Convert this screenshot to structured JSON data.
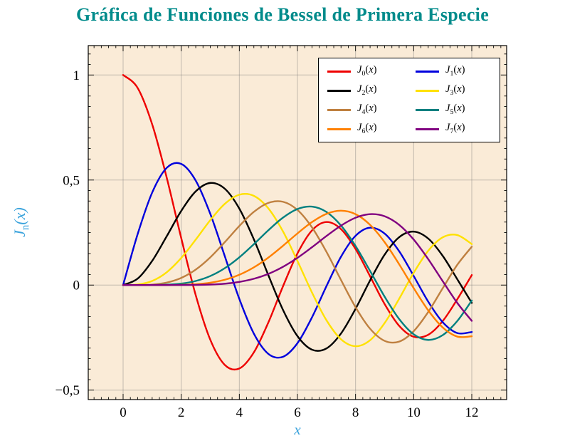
{
  "title": {
    "text": "Gráfica de Funciones de Bessel de Primera Especie",
    "color": "#008b8b"
  },
  "axes": {
    "x_label": "x",
    "y_label": {
      "base": "J",
      "sub": "n",
      "open": "(",
      "var": "x",
      "close": ")"
    },
    "label_color": "#3ba3dc",
    "tick_color": "#000000"
  },
  "chart_data": {
    "type": "line",
    "title": "Gráfica de Funciones de Bessel de Primera Especie",
    "xlabel": "x",
    "ylabel": "J_n(x)",
    "xlim": [
      -1.2,
      13.2
    ],
    "ylim": [
      -0.545,
      1.14
    ],
    "grid": true,
    "legend_position": "top-right",
    "plot_bg": "#faebd7",
    "grid_color": "rgba(110,110,110,0.4)",
    "axis_color": "#000000",
    "func_symbol": "J",
    "arg_open": "(",
    "arg_var": "x",
    "arg_close": ")",
    "minor_step_x": 0.25,
    "minor_step_y": 0.05,
    "x_ticks": [
      {
        "v": 0,
        "label": "0"
      },
      {
        "v": 2,
        "label": "2"
      },
      {
        "v": 4,
        "label": "4"
      },
      {
        "v": 6,
        "label": "6"
      },
      {
        "v": 8,
        "label": "8"
      },
      {
        "v": 10,
        "label": "10"
      },
      {
        "v": 12,
        "label": "12"
      }
    ],
    "y_ticks": [
      {
        "v": 1,
        "label": "1"
      },
      {
        "v": 0.5,
        "label": "0,5"
      },
      {
        "v": 0,
        "label": "0"
      },
      {
        "v": -0.5,
        "label": "−0,5"
      }
    ],
    "x": [
      0,
      0.5,
      1,
      1.5,
      2,
      2.5,
      3,
      3.5,
      4,
      4.5,
      5,
      5.5,
      6,
      6.5,
      7,
      7.5,
      8,
      8.5,
      9,
      9.5,
      10,
      10.5,
      11,
      11.5,
      12
    ],
    "series": [
      {
        "name": "J_0(x)",
        "sub": "0",
        "color": "#ee0000",
        "values": [
          1,
          0.9385,
          0.7652,
          0.5118,
          0.2239,
          -0.0484,
          -0.2601,
          -0.3801,
          -0.3971,
          -0.3205,
          -0.1776,
          -0.0068,
          0.1506,
          0.2601,
          0.3001,
          0.2663,
          0.1717,
          0.0419,
          -0.0903,
          -0.1939,
          -0.2459,
          -0.2366,
          -0.1712,
          -0.0677,
          0.0477
        ]
      },
      {
        "name": "J_1(x)",
        "sub": "1",
        "color": "#0000dd",
        "values": [
          0,
          0.2423,
          0.4401,
          0.5579,
          0.5767,
          0.4971,
          0.3391,
          0.1374,
          -0.066,
          -0.2311,
          -0.3276,
          -0.3414,
          -0.2767,
          -0.1538,
          -0.0047,
          0.1352,
          0.2346,
          0.2731,
          0.2453,
          0.1613,
          0.0435,
          -0.0789,
          -0.1768,
          -0.2284,
          -0.2234
        ]
      },
      {
        "name": "J_2(x)",
        "sub": "2",
        "color": "#000000",
        "values": [
          0,
          0.0306,
          0.1149,
          0.2321,
          0.3528,
          0.4461,
          0.4861,
          0.4586,
          0.3641,
          0.2178,
          0.0466,
          -0.1173,
          -0.2429,
          -0.3074,
          -0.3014,
          -0.2303,
          -0.113,
          0.0223,
          0.1448,
          0.2279,
          0.2546,
          0.2216,
          0.139,
          0.0279,
          -0.0849
        ]
      },
      {
        "name": "J_3(x)",
        "sub": "3",
        "color": "#ffe100",
        "values": [
          0,
          0.0026,
          0.0196,
          0.061,
          0.1289,
          0.2166,
          0.3091,
          0.3868,
          0.4302,
          0.4247,
          0.3648,
          0.2561,
          0.1148,
          -0.0353,
          -0.1676,
          -0.2581,
          -0.2911,
          -0.2626,
          -0.1809,
          -0.0653,
          0.0584,
          0.1633,
          0.2273,
          0.2381,
          0.1951
        ]
      },
      {
        "name": "J_4(x)",
        "sub": "4",
        "color": "#bf8040",
        "values": [
          0,
          0.0002,
          0.0025,
          0.0118,
          0.034,
          0.0738,
          0.132,
          0.2044,
          0.2811,
          0.3484,
          0.3912,
          0.3967,
          0.3576,
          0.2748,
          0.1578,
          0.0238,
          -0.1054,
          -0.2077,
          -0.2655,
          -0.2691,
          -0.2196,
          -0.1283,
          -0.015,
          0.0963,
          0.1825
        ]
      },
      {
        "name": "J_5(x)",
        "sub": "5",
        "color": "#008080",
        "values": [
          0,
          0,
          0.0002,
          0.0018,
          0.007,
          0.0195,
          0.043,
          0.0804,
          0.1321,
          0.1947,
          0.2611,
          0.3209,
          0.3621,
          0.3735,
          0.3479,
          0.2833,
          0.1858,
          0.0671,
          -0.055,
          -0.1613,
          -0.2341,
          -0.2611,
          -0.2383,
          -0.1711,
          -0.0734
        ]
      },
      {
        "name": "J_6(x)",
        "sub": "6",
        "color": "#ff8000",
        "values": [
          0,
          0,
          0,
          0.0002,
          0.0012,
          0.0042,
          0.0114,
          0.0254,
          0.0491,
          0.0843,
          0.131,
          0.1868,
          0.2458,
          0.2999,
          0.3392,
          0.3539,
          0.3376,
          0.2867,
          0.2043,
          0.0993,
          -0.0145,
          -0.1203,
          -0.2016,
          -0.2451,
          -0.2437
        ]
      },
      {
        "name": "J_7(x)",
        "sub": "7",
        "color": "#800080",
        "values": [
          0,
          0,
          0,
          0,
          0.0002,
          0.0008,
          0.0025,
          0.0067,
          0.0152,
          0.03,
          0.0534,
          0.0867,
          0.1296,
          0.1801,
          0.2336,
          0.2832,
          0.3206,
          0.3376,
          0.3275,
          0.2867,
          0.2167,
          0.1236,
          0.0184,
          -0.0847,
          -0.1703
        ]
      }
    ]
  }
}
